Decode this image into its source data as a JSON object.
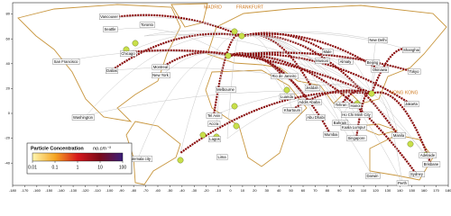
{
  "map": {
    "x_axis": {
      "ticks": [
        -180,
        -170,
        -160,
        -150,
        -140,
        -130,
        -120,
        -110,
        -100,
        -90,
        -80,
        -70,
        -60,
        -50,
        -40,
        -30,
        -20,
        -10,
        0,
        10,
        20,
        30,
        40,
        50,
        60,
        70,
        80,
        90,
        100,
        110,
        120,
        130,
        140,
        150,
        160,
        170,
        180
      ]
    },
    "y_axis": {
      "ticks": [
        80,
        60,
        40,
        20,
        0,
        -20,
        -40
      ]
    },
    "colorbar": {
      "title": "Particle Concentration",
      "unit": "no.cm⁻³",
      "ticks": [
        {
          "value": 0.01,
          "label": "0.01"
        },
        {
          "value": 0.1,
          "label": "0.1"
        },
        1,
        10,
        100
      ]
    },
    "hubs": [
      "MADRID",
      "FRANKFURT",
      "HONG KONG"
    ],
    "cities": [
      "Vancouver",
      "Seattle",
      "Toronto",
      "San Francisco",
      "Chicago",
      "Montreal",
      "Dallas",
      "New York",
      "Washington",
      "Guatemala city",
      "Lima",
      "Rio de Janeiro",
      "Tel Aviv",
      "Accra",
      "Lagos",
      "Luanda",
      "Khartoum",
      "Addis Ababa",
      "Jeddah",
      "Abu Dhabi",
      "Bahrain",
      "Muscat",
      "Tehran",
      "Mumbai",
      "Male",
      "Almaty",
      "New Delhi",
      "Beijing",
      "Shanghai",
      "Tokyo",
      "Okinawa",
      "Hanoi",
      "Ho Chi Minh City",
      "Kuala Lumpur",
      "Singapore",
      "Jakarta",
      "Manila",
      "Darwin",
      "Perth",
      "Adelaide",
      "Brisbane",
      "Sydney",
      "Melbourne"
    ]
  }
}
